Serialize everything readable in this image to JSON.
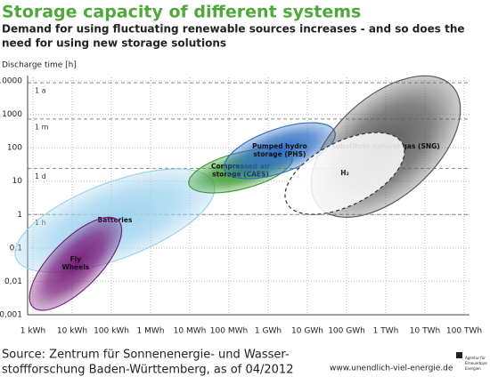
{
  "chart_data": {
    "type": "region",
    "title": "Storage capacity of different systems",
    "subtitle": [
      "Demand for using fluctuating renewable sources increases - and so does the",
      "need for using new storage solutions"
    ],
    "y_label": "Discharge time [h]",
    "log_x": true,
    "log_y": true,
    "grid": true,
    "xlim": [
      1,
      100000000000
    ],
    "ylim": [
      0.001,
      10000
    ],
    "xticks": [
      {
        "value": 1,
        "label": "1 kWh"
      },
      {
        "value": 10,
        "label": "10 kWh"
      },
      {
        "value": 100,
        "label": "100 kWh"
      },
      {
        "value": 1000,
        "label": "1 MWh"
      },
      {
        "value": 10000,
        "label": "10 MWh"
      },
      {
        "value": 100000,
        "label": "100 MWh"
      },
      {
        "value": 1000000,
        "label": "1 GWh"
      },
      {
        "value": 10000000,
        "label": "10 GWh"
      },
      {
        "value": 100000000,
        "label": "100 GWh"
      },
      {
        "value": 1000000000,
        "label": "1 TWh"
      },
      {
        "value": 10000000000,
        "label": "10 TWh"
      },
      {
        "value": 100000000000,
        "label": "100 TWh"
      }
    ],
    "yticks": [
      {
        "value": 0.001,
        "label": "0,001"
      },
      {
        "value": 0.01,
        "label": "0,01"
      },
      {
        "value": 0.1,
        "label": "0,1"
      },
      1,
      10,
      100,
      1000,
      10000
    ],
    "reference_lines": [
      {
        "value": 1,
        "label": "1 h"
      },
      {
        "value": 24,
        "label": "1 d"
      },
      {
        "value": 720,
        "label": "1 m"
      },
      {
        "value": 8760,
        "label": "1 a"
      }
    ],
    "regions": [
      {
        "label": [
          "Batteries"
        ],
        "color": "#9fd3ee",
        "x": [
          0.37,
          41000
        ],
        "y": [
          0.05,
          8.7
        ],
        "minor_axis_decades": 2.1
      },
      {
        "label": [
          "Fly",
          "Wheels"
        ],
        "color": "#7a1f7c",
        "x": [
          1,
          150
        ],
        "y": [
          0.0017,
          0.66
        ],
        "minor_axis_decades": 1.35
      },
      {
        "label": [
          "Compressed air",
          "storage (CAES)"
        ],
        "color": "#3e9c35",
        "x": [
          9500,
          4100000
        ],
        "y": [
          8.1,
          51
        ],
        "minor_axis_decades": 1.0
      },
      {
        "label": [
          "Pumped hydro",
          "storage (PHS)"
        ],
        "color": "#2f6fc4",
        "x": [
          77000,
          50000000
        ],
        "y": [
          22,
          300
        ],
        "minor_axis_decades": 1.2
      },
      {
        "label": [
          "substitute natural gas (SNG)"
        ],
        "color": "#5a5a5a",
        "x": [
          20000000,
          50000000000
        ],
        "y": [
          1.7,
          6900
        ],
        "minor_axis_decades": 2.75
      },
      {
        "label": [
          "H₂"
        ],
        "color": "#ffffff",
        "dashed": true,
        "x": [
          3000000,
          2700000000
        ],
        "y": [
          2.2,
          130
        ],
        "minor_axis_decades": 1.75
      }
    ],
    "source": [
      "Source: Zentrum für Sonnenenergie- und Wasser-",
      "stoffforschung Baden-Württemberg, as of 04/2012"
    ],
    "website": "www.unendlich-viel-energie.de",
    "logo_text": [
      "Agentur für",
      "Erneuerbare",
      "Energien"
    ]
  }
}
